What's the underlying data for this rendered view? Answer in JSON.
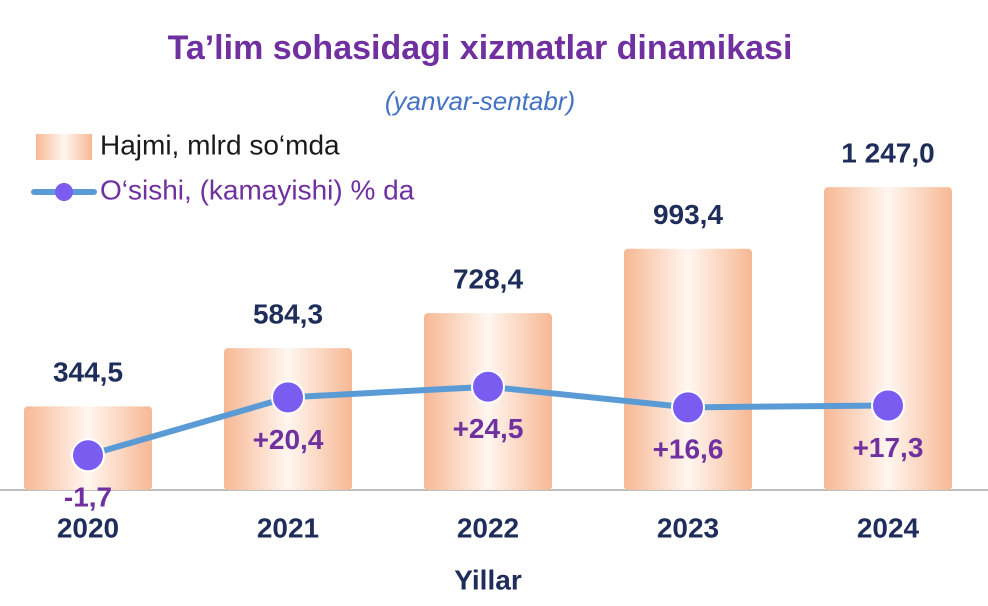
{
  "chart_data": {
    "type": "bar",
    "title": "Ta’lim sohasidagi xizmatlar dinamikasi",
    "subtitle": "(yanvar-sentabr)",
    "x_label": "Yillar",
    "categories": [
      "2020",
      "2021",
      "2022",
      "2023",
      "2024"
    ],
    "series": [
      {
        "name": "Hajmi, mlrd so‘mda",
        "type": "bar",
        "color": "#f7b894",
        "values": [
          344.5,
          584.3,
          728.4,
          993.4,
          1247.0
        ],
        "value_labels": [
          "344,5",
          "584,3",
          "728,4",
          "993,4",
          "1 247,0"
        ]
      },
      {
        "name": "O‘sishi, (kamayishi) % da",
        "type": "line",
        "axis": "y2",
        "color": "#5b9bd5",
        "marker_color": "#7b5cf0",
        "values": [
          -1.7,
          20.4,
          24.5,
          16.6,
          17.3
        ],
        "value_labels": [
          "-1,7",
          "+20,4",
          "+24,5",
          "+16,6",
          "+17,3"
        ]
      }
    ],
    "ylim": [
      0,
      1400
    ],
    "y2lim": [
      -15,
      115
    ]
  }
}
